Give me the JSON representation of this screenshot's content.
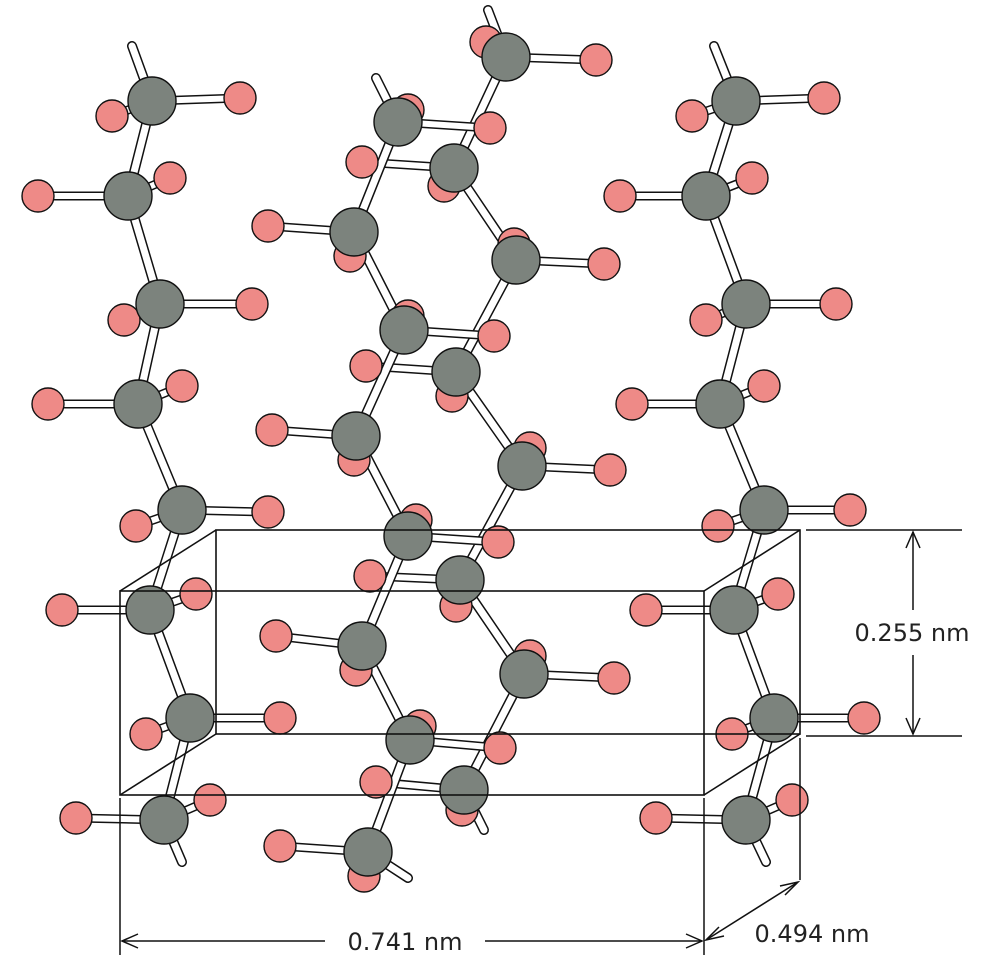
{
  "dimensions": {
    "a": "0.741 nm",
    "b": "0.494 nm",
    "c": "0.255 nm"
  },
  "colors": {
    "carbon": "#7c837d",
    "hydrogen": "#ee8a87",
    "bond": "#ffffff",
    "line": "#111111"
  }
}
